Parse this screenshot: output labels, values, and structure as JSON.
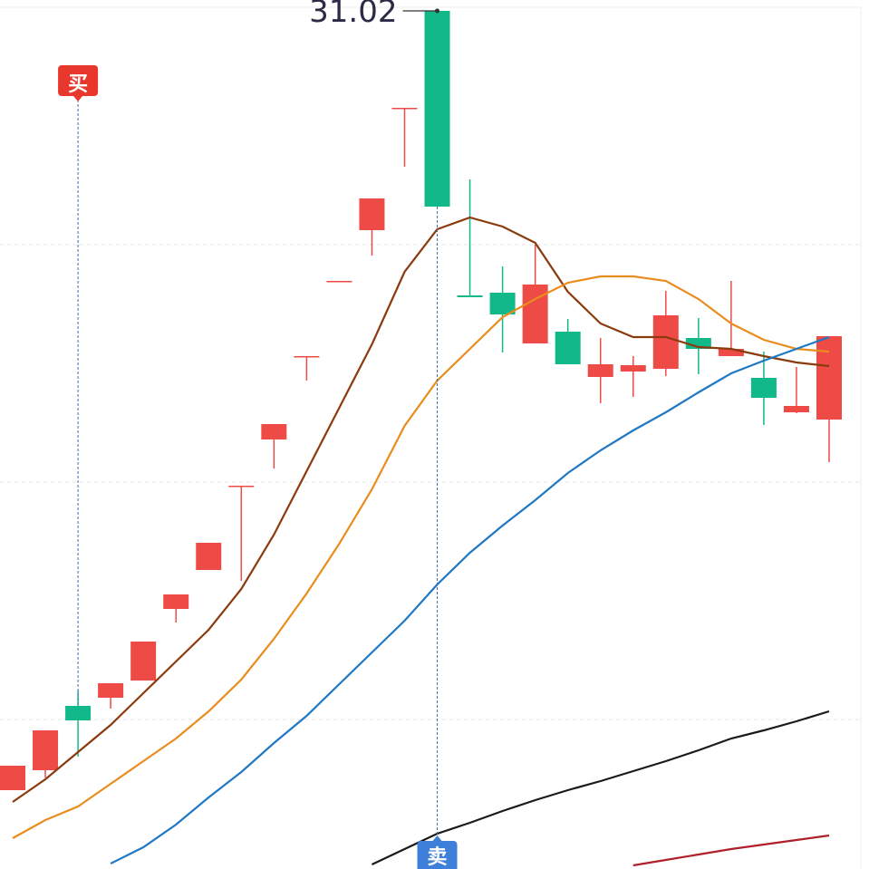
{
  "chart_data": {
    "type": "candlestick",
    "categories": [
      null,
      null,
      null,
      null,
      null,
      null,
      null,
      null,
      null,
      null,
      null,
      null,
      null,
      null,
      null,
      null,
      null,
      null,
      null,
      null,
      null,
      null,
      null,
      null,
      null,
      null
    ],
    "open": [
      13.82,
      14.26,
      15.68,
      15.86,
      16.24,
      17.82,
      18.68,
      20.54,
      21.56,
      23.4,
      25.06,
      26.18,
      28.88,
      31.02,
      24.74,
      24.8,
      23.68,
      23.94,
      22.94,
      23.06,
      23.12,
      23.8,
      23.4,
      22.92,
      22.16,
      22.0
    ],
    "high": [
      14.36,
      15.14,
      16.02,
      16.18,
      17.1,
      18.14,
      19.28,
      20.54,
      21.9,
      23.4,
      25.06,
      26.88,
      28.88,
      31.02,
      27.3,
      25.38,
      25.86,
      24.22,
      23.8,
      23.4,
      24.84,
      24.24,
      25.06,
      23.5,
      23.16,
      23.84
    ],
    "low": [
      13.82,
      14.1,
      14.56,
      15.62,
      16.24,
      17.52,
      18.68,
      18.44,
      20.92,
      22.86,
      25.06,
      25.62,
      27.58,
      26.7,
      24.7,
      23.48,
      23.68,
      23.22,
      22.36,
      22.5,
      22.96,
      23.0,
      23.4,
      21.88,
      22.14,
      21.06
    ],
    "close": [
      14.36,
      15.14,
      15.36,
      16.18,
      17.1,
      18.14,
      19.28,
      20.54,
      21.9,
      23.4,
      25.06,
      26.88,
      28.88,
      26.7,
      24.7,
      24.32,
      24.98,
      23.22,
      23.22,
      23.2,
      24.3,
      23.56,
      23.56,
      22.48,
      22.3,
      23.84
    ],
    "up_color": "#ef4b46",
    "down_color": "#10b88a",
    "lines": [
      {
        "color": "#8b3a0e",
        "values": [
          13.56,
          14.06,
          14.66,
          15.26,
          15.96,
          16.66,
          17.36,
          18.26,
          19.46,
          20.86,
          22.26,
          23.66,
          25.26,
          26.2,
          26.46,
          26.26,
          25.9,
          24.82,
          24.12,
          23.82,
          23.82,
          23.6,
          23.56,
          23.4,
          23.26,
          23.18
        ]
      },
      {
        "color": "#ea8c1e",
        "values": [
          12.76,
          13.16,
          13.46,
          13.96,
          14.46,
          14.96,
          15.56,
          16.26,
          17.16,
          18.16,
          19.26,
          20.46,
          21.86,
          22.86,
          23.56,
          24.26,
          24.66,
          25.02,
          25.16,
          25.16,
          25.06,
          24.66,
          24.12,
          23.76,
          23.56,
          23.5
        ]
      },
      {
        "color": "#1f78c4",
        "values": [
          null,
          null,
          null,
          12.2,
          12.56,
          13.06,
          13.66,
          14.22,
          14.86,
          15.46,
          16.16,
          16.86,
          17.56,
          18.36,
          19.06,
          19.66,
          20.22,
          20.82,
          21.32,
          21.76,
          22.16,
          22.6,
          23.02,
          23.3,
          23.56,
          23.82
        ]
      },
      {
        "color": "#1a1a1a",
        "values": [
          null,
          null,
          null,
          null,
          null,
          null,
          null,
          null,
          null,
          null,
          null,
          12.18,
          12.52,
          12.86,
          13.1,
          13.36,
          13.6,
          13.82,
          14.02,
          14.24,
          14.46,
          14.7,
          14.96,
          15.14,
          15.34,
          15.56
        ]
      },
      {
        "color": "#b0202a",
        "values": [
          null,
          null,
          null,
          null,
          null,
          null,
          null,
          null,
          null,
          null,
          null,
          null,
          null,
          null,
          null,
          null,
          null,
          null,
          null,
          12.16,
          12.28,
          12.4,
          12.52,
          12.62,
          12.72,
          12.82
        ]
      }
    ],
    "ylim": [
      12.08,
      31.26
    ],
    "max_label": {
      "value": 31.02,
      "label": "31.02"
    },
    "buy": {
      "text": "买",
      "at": 2
    },
    "sell": {
      "text": "卖",
      "at": 13
    }
  }
}
